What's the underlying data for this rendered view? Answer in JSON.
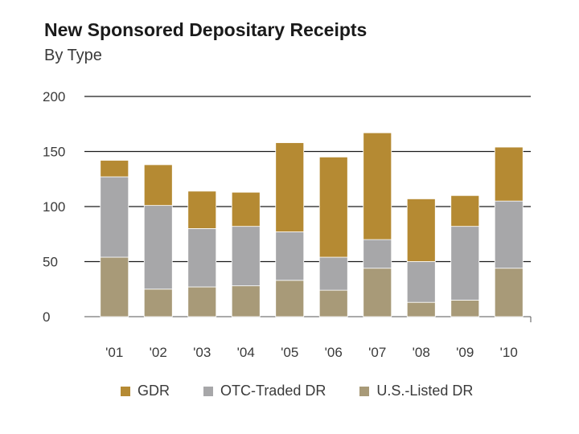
{
  "chart_data": {
    "type": "bar",
    "stacked": true,
    "title": "New Sponsored Depositary Receipts",
    "subtitle": "By Type",
    "xlabel": "",
    "ylabel": "",
    "ylim": [
      0,
      200
    ],
    "yticks": [
      0,
      50,
      100,
      150,
      200
    ],
    "grid": true,
    "legend_position": "bottom",
    "categories": [
      "'01",
      "'02",
      "'03",
      "'04",
      "'05",
      "'06",
      "'07",
      "'08",
      "'09",
      "'10"
    ],
    "series": [
      {
        "name": "U.S.-Listed DR",
        "color": "#a89a78",
        "values": [
          54,
          25,
          27,
          28,
          33,
          24,
          44,
          13,
          15,
          44
        ]
      },
      {
        "name": "OTC-Traded DR",
        "color": "#a7a7a9",
        "values": [
          73,
          76,
          53,
          54,
          44,
          30,
          26,
          37,
          67,
          61
        ]
      },
      {
        "name": "GDR",
        "color": "#b58a33",
        "values": [
          15,
          37,
          34,
          31,
          81,
          91,
          97,
          57,
          28,
          49
        ]
      }
    ],
    "legend_order": [
      "GDR",
      "OTC-Traded DR",
      "U.S.-Listed DR"
    ]
  }
}
